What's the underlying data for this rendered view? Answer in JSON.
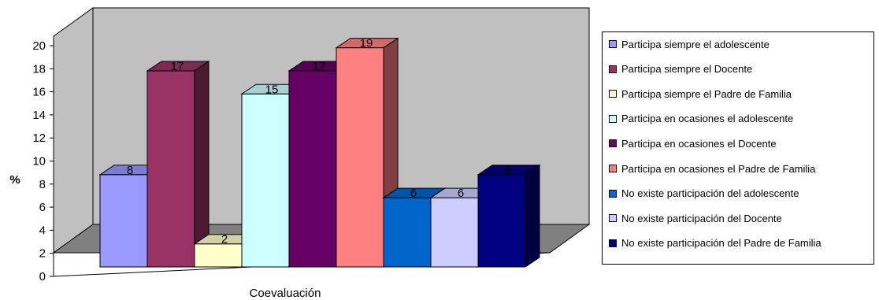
{
  "chart_data": {
    "type": "bar",
    "categories": [
      "Coevaluación"
    ],
    "xlabel": "Coevaluación",
    "ylabel": "%",
    "ylim": [
      0,
      20
    ],
    "yticks": [
      0,
      2,
      4,
      6,
      8,
      10,
      12,
      14,
      16,
      18,
      20
    ],
    "grid": false,
    "legend": "right",
    "series": [
      {
        "name": "Participa siempre el adolescente",
        "values": [
          8
        ],
        "label": "8",
        "color": "#9999ff"
      },
      {
        "name": "Participa siempre el Docente",
        "values": [
          17
        ],
        "label": "17",
        "color": "#993366"
      },
      {
        "name": "Participa siempre el Padre de Familia",
        "values": [
          2
        ],
        "label": "2",
        "color": "#ffffcc"
      },
      {
        "name": "Participa en ocasiones el adolescente",
        "values": [
          15
        ],
        "label": "15",
        "color": "#ccffff"
      },
      {
        "name": "Participa en ocasiones el Docente",
        "values": [
          17
        ],
        "label": "17",
        "color": "#660066"
      },
      {
        "name": "Participa en ocasiones el Padre de Familia",
        "values": [
          19
        ],
        "label": "19",
        "color": "#ff8080"
      },
      {
        "name": "No existe participación del adolescente",
        "values": [
          6
        ],
        "label": "6",
        "color": "#0066cc"
      },
      {
        "name": "No existe participación del Docente",
        "values": [
          6
        ],
        "label": "6",
        "color": "#ccccff"
      },
      {
        "name": "No existe participación del Padre de Familia",
        "values": [
          8
        ],
        "label": "8",
        "color": "#000080"
      }
    ]
  }
}
